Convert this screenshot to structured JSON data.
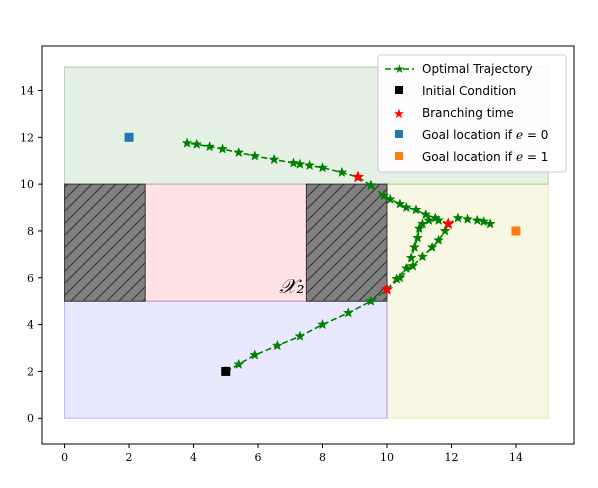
{
  "chart_data": {
    "type": "scatter",
    "xlim": [
      -0.7,
      15.8
    ],
    "ylim": [
      -1.1,
      15.9
    ],
    "xticks": [
      0,
      2,
      4,
      6,
      8,
      10,
      12,
      14
    ],
    "yticks": [
      0,
      2,
      4,
      6,
      8,
      10,
      12,
      14
    ],
    "grid": false,
    "legend_position": "top-right",
    "regions": [
      {
        "name": "green-region",
        "x": [
          0,
          15
        ],
        "y": [
          10,
          15
        ],
        "color": "#2e8b2e",
        "alpha": 0.12
      },
      {
        "name": "yellow-region",
        "x": [
          10,
          15
        ],
        "y": [
          0,
          10
        ],
        "color": "#c8c840",
        "alpha": 0.15
      },
      {
        "name": "blue-region",
        "x": [
          0,
          10
        ],
        "y": [
          0,
          5
        ],
        "color": "#4040ff",
        "alpha": 0.12
      },
      {
        "name": "pink-region",
        "x": [
          2.5,
          7.5
        ],
        "y": [
          5,
          10
        ],
        "color": "#ff6070",
        "alpha": 0.18
      },
      {
        "name": "obstacle-left",
        "x": [
          0,
          2.5
        ],
        "y": [
          5,
          10
        ],
        "color": "#808080",
        "alpha": 1,
        "hatch": true
      },
      {
        "name": "obstacle-right",
        "x": [
          7.5,
          10
        ],
        "y": [
          5,
          10
        ],
        "color": "#808080",
        "alpha": 1,
        "hatch": true
      }
    ],
    "region_label": {
      "text": "𝒳₂",
      "x": 7.05,
      "y": 5.35
    },
    "series": [
      {
        "name": "Optimal Trajectory",
        "kind": "trajectory",
        "color": "#008000",
        "branches": [
          {
            "x": [
              5.0,
              5.4,
              5.9,
              6.6,
              7.3,
              8.0,
              8.8,
              9.5,
              10.0
            ],
            "y": [
              2.0,
              2.3,
              2.7,
              3.1,
              3.5,
              4.0,
              4.5,
              5.0,
              5.5
            ]
          },
          {
            "x": [
              10.0,
              10.4,
              10.8,
              11.1,
              11.4,
              11.6,
              11.8,
              11.9
            ],
            "y": [
              5.5,
              6.0,
              6.5,
              6.9,
              7.3,
              7.6,
              8.0,
              8.3
            ]
          },
          {
            "x": [
              10.0,
              10.3,
              10.6,
              10.75,
              10.85,
              10.95,
              11.0,
              11.1,
              11.3,
              11.6,
              11.9
            ],
            "y": [
              5.5,
              5.95,
              6.4,
              6.85,
              7.3,
              7.7,
              8.1,
              8.3,
              8.45,
              8.45,
              8.3
            ]
          },
          {
            "x": [
              11.9,
              12.2,
              12.5,
              12.8,
              13.0,
              13.2
            ],
            "y": [
              8.3,
              8.55,
              8.5,
              8.45,
              8.4,
              8.3
            ]
          },
          {
            "x": [
              11.9,
              11.5,
              11.2,
              10.9,
              10.6,
              10.4,
              10.1,
              9.9,
              9.5
            ],
            "y": [
              8.3,
              8.55,
              8.7,
              8.9,
              9.0,
              9.15,
              9.35,
              9.5,
              9.95
            ]
          },
          {
            "x": [
              9.5,
              9.1,
              8.6,
              8.0,
              7.6,
              7.3,
              7.1,
              6.5,
              5.9,
              5.4,
              4.9,
              4.5,
              4.1,
              3.8
            ],
            "y": [
              9.95,
              10.3,
              10.5,
              10.7,
              10.8,
              10.85,
              10.9,
              11.05,
              11.2,
              11.35,
              11.5,
              11.6,
              11.7,
              11.75
            ]
          }
        ]
      },
      {
        "name": "Initial Condition",
        "kind": "point",
        "color": "#000000",
        "marker": "square",
        "points": [
          [
            5.0,
            2.0
          ]
        ]
      },
      {
        "name": "Branching time",
        "kind": "point",
        "color": "#ff0000",
        "marker": "star",
        "points": [
          [
            9.1,
            10.3
          ],
          [
            10.0,
            5.5
          ],
          [
            11.9,
            8.3
          ]
        ]
      },
      {
        "name": "Goal location if e = 0",
        "kind": "point",
        "color": "#1f77b4",
        "marker": "square",
        "points": [
          [
            2.0,
            12.0
          ]
        ]
      },
      {
        "name": "Goal location if e = 1",
        "kind": "point",
        "color": "#ff7f0e",
        "marker": "square",
        "points": [
          [
            14.0,
            8.0
          ]
        ]
      }
    ]
  },
  "legend": {
    "items": [
      {
        "label_prefix": "Optimal Trajectory",
        "math": "",
        "label_suffix": ""
      },
      {
        "label_prefix": "Initial Condition",
        "math": "",
        "label_suffix": ""
      },
      {
        "label_prefix": "Branching time",
        "math": "",
        "label_suffix": ""
      },
      {
        "label_prefix": "Goal location if ",
        "math": "e",
        "label_suffix": " = 0"
      },
      {
        "label_prefix": "Goal location if ",
        "math": "e",
        "label_suffix": " = 1"
      }
    ]
  }
}
